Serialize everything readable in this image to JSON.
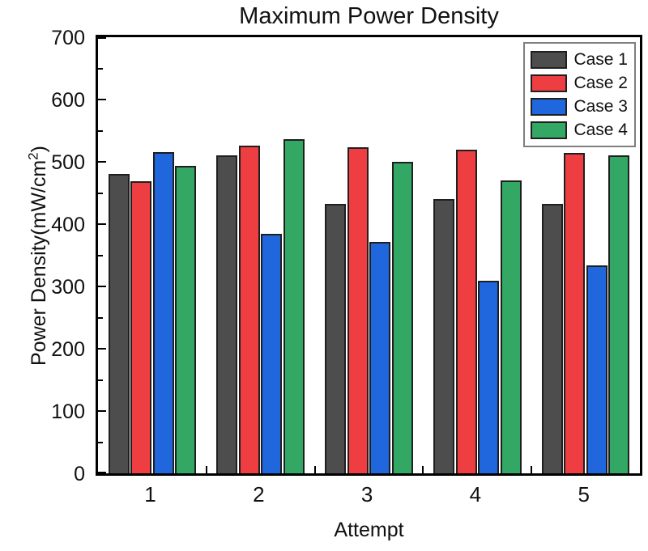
{
  "title": "Maximum Power Density",
  "axes": {
    "xlabel": "Attempt",
    "ylabel_prefix": "Power Density(mW/cm",
    "ylabel_sup": "2",
    "ylabel_suffix": ")"
  },
  "legend": {
    "items": [
      "Case 1",
      "Case 2",
      "Case 3",
      "Case 4"
    ]
  },
  "colors": {
    "case1": "#4d4d4d",
    "case2": "#ef3e41",
    "case3": "#2066dd",
    "case4": "#33a865",
    "bar_edge": "#1f1f1f",
    "frame": "#000000",
    "legend_border": "#7f7f7f"
  },
  "chart_data": {
    "type": "bar",
    "title": "Maximum Power Density",
    "xlabel": "Attempt",
    "ylabel": "Power Density(mW/cm2)",
    "categories": [
      "1",
      "2",
      "3",
      "4",
      "5"
    ],
    "series": [
      {
        "name": "Case 1",
        "color": "#4d4d4d",
        "values": [
          480,
          510,
          432,
          440,
          432
        ]
      },
      {
        "name": "Case 2",
        "color": "#ef3e41",
        "values": [
          469,
          526,
          523,
          520,
          514
        ]
      },
      {
        "name": "Case 3",
        "color": "#2066dd",
        "values": [
          515,
          385,
          372,
          309,
          334
        ]
      },
      {
        "name": "Case 4",
        "color": "#33a865",
        "values": [
          494,
          537,
          500,
          470,
          510
        ]
      }
    ],
    "ylim": [
      0,
      700
    ],
    "yticks": [
      0,
      100,
      200,
      300,
      400,
      500,
      600,
      700
    ],
    "minor_yticks": [
      50,
      150,
      250,
      350,
      450,
      550,
      650
    ],
    "grid": false,
    "legend_position": "top-right"
  }
}
